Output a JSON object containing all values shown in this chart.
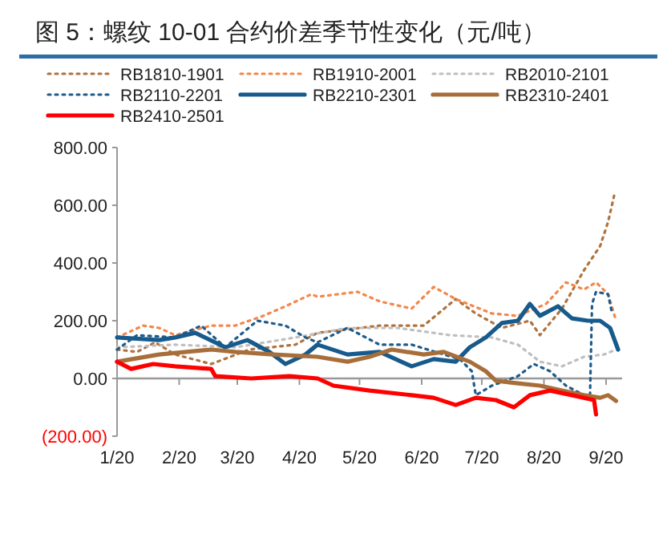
{
  "chart_data": {
    "type": "line",
    "title": "图 5：螺纹 10-01 合约价差季节性变化（元/吨）",
    "legend": "top",
    "grid": false,
    "ref_lines": [
      {
        "axis": "y",
        "value": 0,
        "color": "#999999",
        "line_style": "solid"
      }
    ],
    "xlim": [
      "--01-20",
      "--09-28"
    ],
    "xticks": [
      {
        "value": "--01-20",
        "label": "1/20"
      },
      {
        "value": "--02-20",
        "label": "2/20"
      },
      {
        "value": "--03-20",
        "label": "3/20"
      },
      {
        "value": "--04-20",
        "label": "4/20"
      },
      {
        "value": "--05-20",
        "label": "5/20"
      },
      {
        "value": "--06-20",
        "label": "6/20"
      },
      {
        "value": "--07-20",
        "label": "7/20"
      },
      {
        "value": "--08-20",
        "label": "8/20"
      },
      {
        "value": "--09-20",
        "label": "9/20"
      }
    ],
    "ylim": [
      -200,
      800
    ],
    "yticks": [
      {
        "value": -200,
        "label": "(200.00)"
      },
      {
        "value": 0,
        "label": "0.00"
      },
      {
        "value": 200,
        "label": "200.00"
      },
      {
        "value": 400,
        "label": "400.00"
      },
      {
        "value": 600,
        "label": "600.00"
      },
      {
        "value": 800,
        "label": "800.00"
      }
    ],
    "series": [
      {
        "name": "RB1810-1901",
        "color": "#b0733f",
        "line_style": "dotted",
        "x": [
          "--01-20",
          "--01-30",
          "--02-08",
          "--02-18",
          "--03-07",
          "--03-26",
          "--04-18",
          "--04-29",
          "--05-14",
          "--05-30",
          "--06-21",
          "--07-07",
          "--07-17",
          "--07-30",
          "--08-13",
          "--08-18",
          "--08-29",
          "--09-09",
          "--09-17",
          "--09-21",
          "--09-24"
        ],
        "values": [
          100,
          92,
          125,
          83,
          50,
          100,
          117,
          158,
          170,
          183,
          183,
          275,
          225,
          175,
          200,
          150,
          242,
          375,
          458,
          542,
          633
        ]
      },
      {
        "name": "RB1910-2001",
        "color": "#f4874b",
        "line_style": "dotted",
        "x": [
          "--01-20",
          "--02-02",
          "--02-10",
          "--02-18",
          "--03-07",
          "--03-19",
          "--04-02",
          "--04-13",
          "--04-26",
          "--04-29",
          "--05-19",
          "--05-30",
          "--06-15",
          "--06-26",
          "--07-07",
          "--07-25",
          "--08-07",
          "--08-21",
          "--08-31",
          "--09-09",
          "--09-15",
          "--09-21",
          "--09-25"
        ],
        "values": [
          142,
          183,
          175,
          150,
          183,
          183,
          217,
          250,
          292,
          283,
          300,
          267,
          242,
          317,
          275,
          225,
          217,
          258,
          333,
          308,
          333,
          292,
          200
        ]
      },
      {
        "name": "RB2010-2101",
        "color": "#bfbfbf",
        "line_style": "dotted",
        "x": [
          "--01-20",
          "--02-18",
          "--03-19",
          "--04-18",
          "--05-14",
          "--06-08",
          "--07-04",
          "--07-25",
          "--08-07",
          "--08-18",
          "--08-29",
          "--09-09",
          "--09-19",
          "--09-25"
        ],
        "values": [
          108,
          117,
          108,
          142,
          175,
          175,
          150,
          142,
          117,
          58,
          42,
          75,
          83,
          100
        ]
      },
      {
        "name": "RB2110-2201",
        "color": "#1f5c8b",
        "line_style": "dotted",
        "x": [
          "--01-20",
          "--01-30",
          "--02-18",
          "--03-02",
          "--03-14",
          "--03-30",
          "--04-13",
          "--04-23",
          "--04-29",
          "--05-14",
          "--05-30",
          "--06-15",
          "--07-01",
          "--07-09",
          "--07-15",
          "--07-17",
          "--07-25",
          "--08-07",
          "--08-15",
          "--08-23",
          "--08-31",
          "--09-09",
          "--09-12",
          "--09-13",
          "--09-15",
          "--09-21",
          "--09-23"
        ],
        "values": [
          100,
          150,
          142,
          183,
          108,
          200,
          183,
          142,
          125,
          175,
          117,
          117,
          83,
          67,
          25,
          -58,
          -25,
          8,
          50,
          25,
          -25,
          -58,
          -58,
          258,
          300,
          292,
          225
        ]
      },
      {
        "name": "RB2210-2301",
        "color": "#175a8c",
        "line_style": "solid",
        "x": [
          "--01-20",
          "--02-10",
          "--02-18",
          "--02-28",
          "--03-14",
          "--03-25",
          "--04-05",
          "--04-13",
          "--04-23",
          "--04-29",
          "--05-14",
          "--05-30",
          "--06-15",
          "--06-26",
          "--07-07",
          "--07-14",
          "--07-22",
          "--07-30",
          "--08-07",
          "--08-13",
          "--08-18",
          "--08-27",
          "--09-03",
          "--09-11",
          "--09-17",
          "--09-22",
          "--09-26"
        ],
        "values": [
          142,
          133,
          142,
          158,
          108,
          133,
          92,
          50,
          83,
          117,
          83,
          92,
          42,
          67,
          58,
          108,
          142,
          192,
          200,
          258,
          217,
          250,
          208,
          200,
          200,
          175,
          100
        ]
      },
      {
        "name": "RB2310-2401",
        "color": "#a86e3a",
        "line_style": "solid",
        "x": [
          "--01-20",
          "--02-10",
          "--03-07",
          "--03-19",
          "--04-07",
          "--04-29",
          "--05-14",
          "--05-25",
          "--06-05",
          "--06-21",
          "--07-01",
          "--07-14",
          "--07-22",
          "--07-27",
          "--08-07",
          "--08-18",
          "--08-29",
          "--09-09",
          "--09-17",
          "--09-21",
          "--09-25"
        ],
        "values": [
          58,
          83,
          100,
          92,
          83,
          75,
          58,
          75,
          100,
          83,
          92,
          58,
          25,
          -8,
          -17,
          -25,
          -42,
          -58,
          -67,
          -58,
          -78
        ]
      },
      {
        "name": "RB2410-2501",
        "color": "#ff0000",
        "line_style": "solid",
        "x": [
          "--01-20",
          "--01-27",
          "--02-07",
          "--02-18",
          "--03-07",
          "--03-09",
          "--03-27",
          "--04-15",
          "--04-29",
          "--05-07",
          "--05-25",
          "--06-15",
          "--06-26",
          "--07-07",
          "--07-17",
          "--07-27",
          "--08-05",
          "--08-13",
          "--08-23",
          "--09-03",
          "--09-14",
          "--09-15"
        ],
        "values": [
          58,
          33,
          50,
          42,
          33,
          8,
          0,
          8,
          0,
          -25,
          -42,
          -58,
          -67,
          -92,
          -67,
          -75,
          -100,
          -58,
          -42,
          -58,
          -75,
          -125
        ]
      }
    ]
  }
}
